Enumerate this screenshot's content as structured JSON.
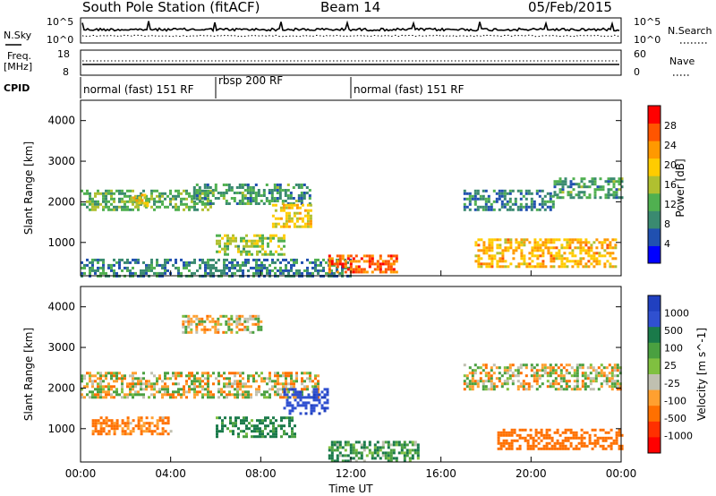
{
  "header": {
    "station": "South Pole Station (fitACF)",
    "beam": "Beam 14",
    "date": "05/Feb/2015"
  },
  "summary": {
    "nsky_label": "N.Sky",
    "nsky_top": "10^5",
    "nsky_bottom": "10^0",
    "nsearch_label": "N.Search",
    "nsearch_top": "10^5",
    "nsearch_bottom": "10^0",
    "freq_label": "Freq.",
    "freq_unit": "[MHz]",
    "freq_top": "18",
    "freq_bottom": "8",
    "nave_label": "Nave",
    "nave_top": "60",
    "nave_bottom": "0",
    "cpid_label": "CPID",
    "modes": [
      {
        "label": "normal (fast) 151 RF",
        "start": 0,
        "end": 6
      },
      {
        "label": "rbsp 200 RF",
        "start": 6,
        "end": 12
      },
      {
        "label": "normal (fast) 151 RF",
        "start": 12,
        "end": 24
      }
    ]
  },
  "colors": {
    "power": [
      "#0000ff",
      "#2050b0",
      "#3a8a70",
      "#50b050",
      "#b0c030",
      "#ffcc00",
      "#ff9900",
      "#ff5500",
      "#ff0000"
    ],
    "velocity": [
      "#2040c0",
      "#3050d0",
      "#1a7a4a",
      "#4aa040",
      "#80c040",
      "#c0c0b0",
      "#ffa030",
      "#ff7000",
      "#ff3000",
      "#ff0000"
    ]
  },
  "chart_data": [
    {
      "type": "heatmap",
      "ylabel": "Slant Range [km]",
      "yticks": [
        "1000",
        "2000",
        "3000",
        "4000"
      ],
      "ylim": [
        180,
        4500
      ],
      "xlim": [
        0,
        24
      ],
      "xticks": [
        "00:00",
        "04:00",
        "08:00",
        "12:00",
        "16:00",
        "20:00",
        "00:00"
      ],
      "colorbar": {
        "label": "Power [dB]",
        "ticks": [
          "4",
          "8",
          "12",
          "16",
          "20",
          "24",
          "28"
        ]
      },
      "series": [
        {
          "t0": 0.0,
          "t1": 5.8,
          "r0": 1800,
          "r1": 2300,
          "power": 12
        },
        {
          "t0": 2.2,
          "t1": 3.0,
          "r0": 1900,
          "r1": 2200,
          "power": 18
        },
        {
          "t0": 5.0,
          "t1": 10.2,
          "r0": 1950,
          "r1": 2450,
          "power": 10
        },
        {
          "t0": 8.5,
          "t1": 10.2,
          "r0": 1400,
          "r1": 1950,
          "power": 18
        },
        {
          "t0": 6.0,
          "t1": 9.0,
          "r0": 700,
          "r1": 1200,
          "power": 14
        },
        {
          "t0": 0.0,
          "t1": 12.0,
          "r0": 200,
          "r1": 600,
          "power": 8
        },
        {
          "t0": 11.0,
          "t1": 14.0,
          "r0": 300,
          "r1": 700,
          "power": 24
        },
        {
          "t0": 17.5,
          "t1": 23.8,
          "r0": 400,
          "r1": 1100,
          "power": 20
        },
        {
          "t0": 17.0,
          "t1": 21.0,
          "r0": 1800,
          "r1": 2300,
          "power": 8
        },
        {
          "t0": 21.0,
          "t1": 24.0,
          "r0": 2100,
          "r1": 2600,
          "power": 10
        }
      ]
    },
    {
      "type": "heatmap",
      "ylabel": "Slant Range [km]",
      "yticks": [
        "1000",
        "2000",
        "3000",
        "4000"
      ],
      "ylim": [
        180,
        4500
      ],
      "xlim": [
        0,
        24
      ],
      "xlabel": "Time UT",
      "xticks": [
        "00:00",
        "04:00",
        "08:00",
        "12:00",
        "16:00",
        "20:00",
        "00:00"
      ],
      "colorbar": {
        "label": "Velocity [m s^-1]",
        "ticks": [
          "1000",
          "500",
          "100",
          "25",
          "-25",
          "-100",
          "-500",
          "-1000"
        ]
      },
      "series": [
        {
          "t0": 0.0,
          "t1": 10.5,
          "r0": 1800,
          "r1": 2400,
          "velocity": 0
        },
        {
          "t0": 4.5,
          "t1": 8.0,
          "r0": 3400,
          "r1": 3800,
          "velocity": 0
        },
        {
          "t0": 0.5,
          "t1": 4.0,
          "r0": 900,
          "r1": 1300,
          "velocity": -150
        },
        {
          "t0": 6.0,
          "t1": 9.5,
          "r0": 800,
          "r1": 1300,
          "velocity": 200
        },
        {
          "t0": 9.0,
          "t1": 11.0,
          "r0": 1400,
          "r1": 2000,
          "velocity": 600
        },
        {
          "t0": 11.0,
          "t1": 15.0,
          "r0": 200,
          "r1": 700,
          "velocity": 150
        },
        {
          "t0": 18.5,
          "t1": 24.0,
          "r0": 500,
          "r1": 1000,
          "velocity": -300
        },
        {
          "t0": 17.0,
          "t1": 24.0,
          "r0": 2000,
          "r1": 2600,
          "velocity": 0
        }
      ]
    }
  ]
}
